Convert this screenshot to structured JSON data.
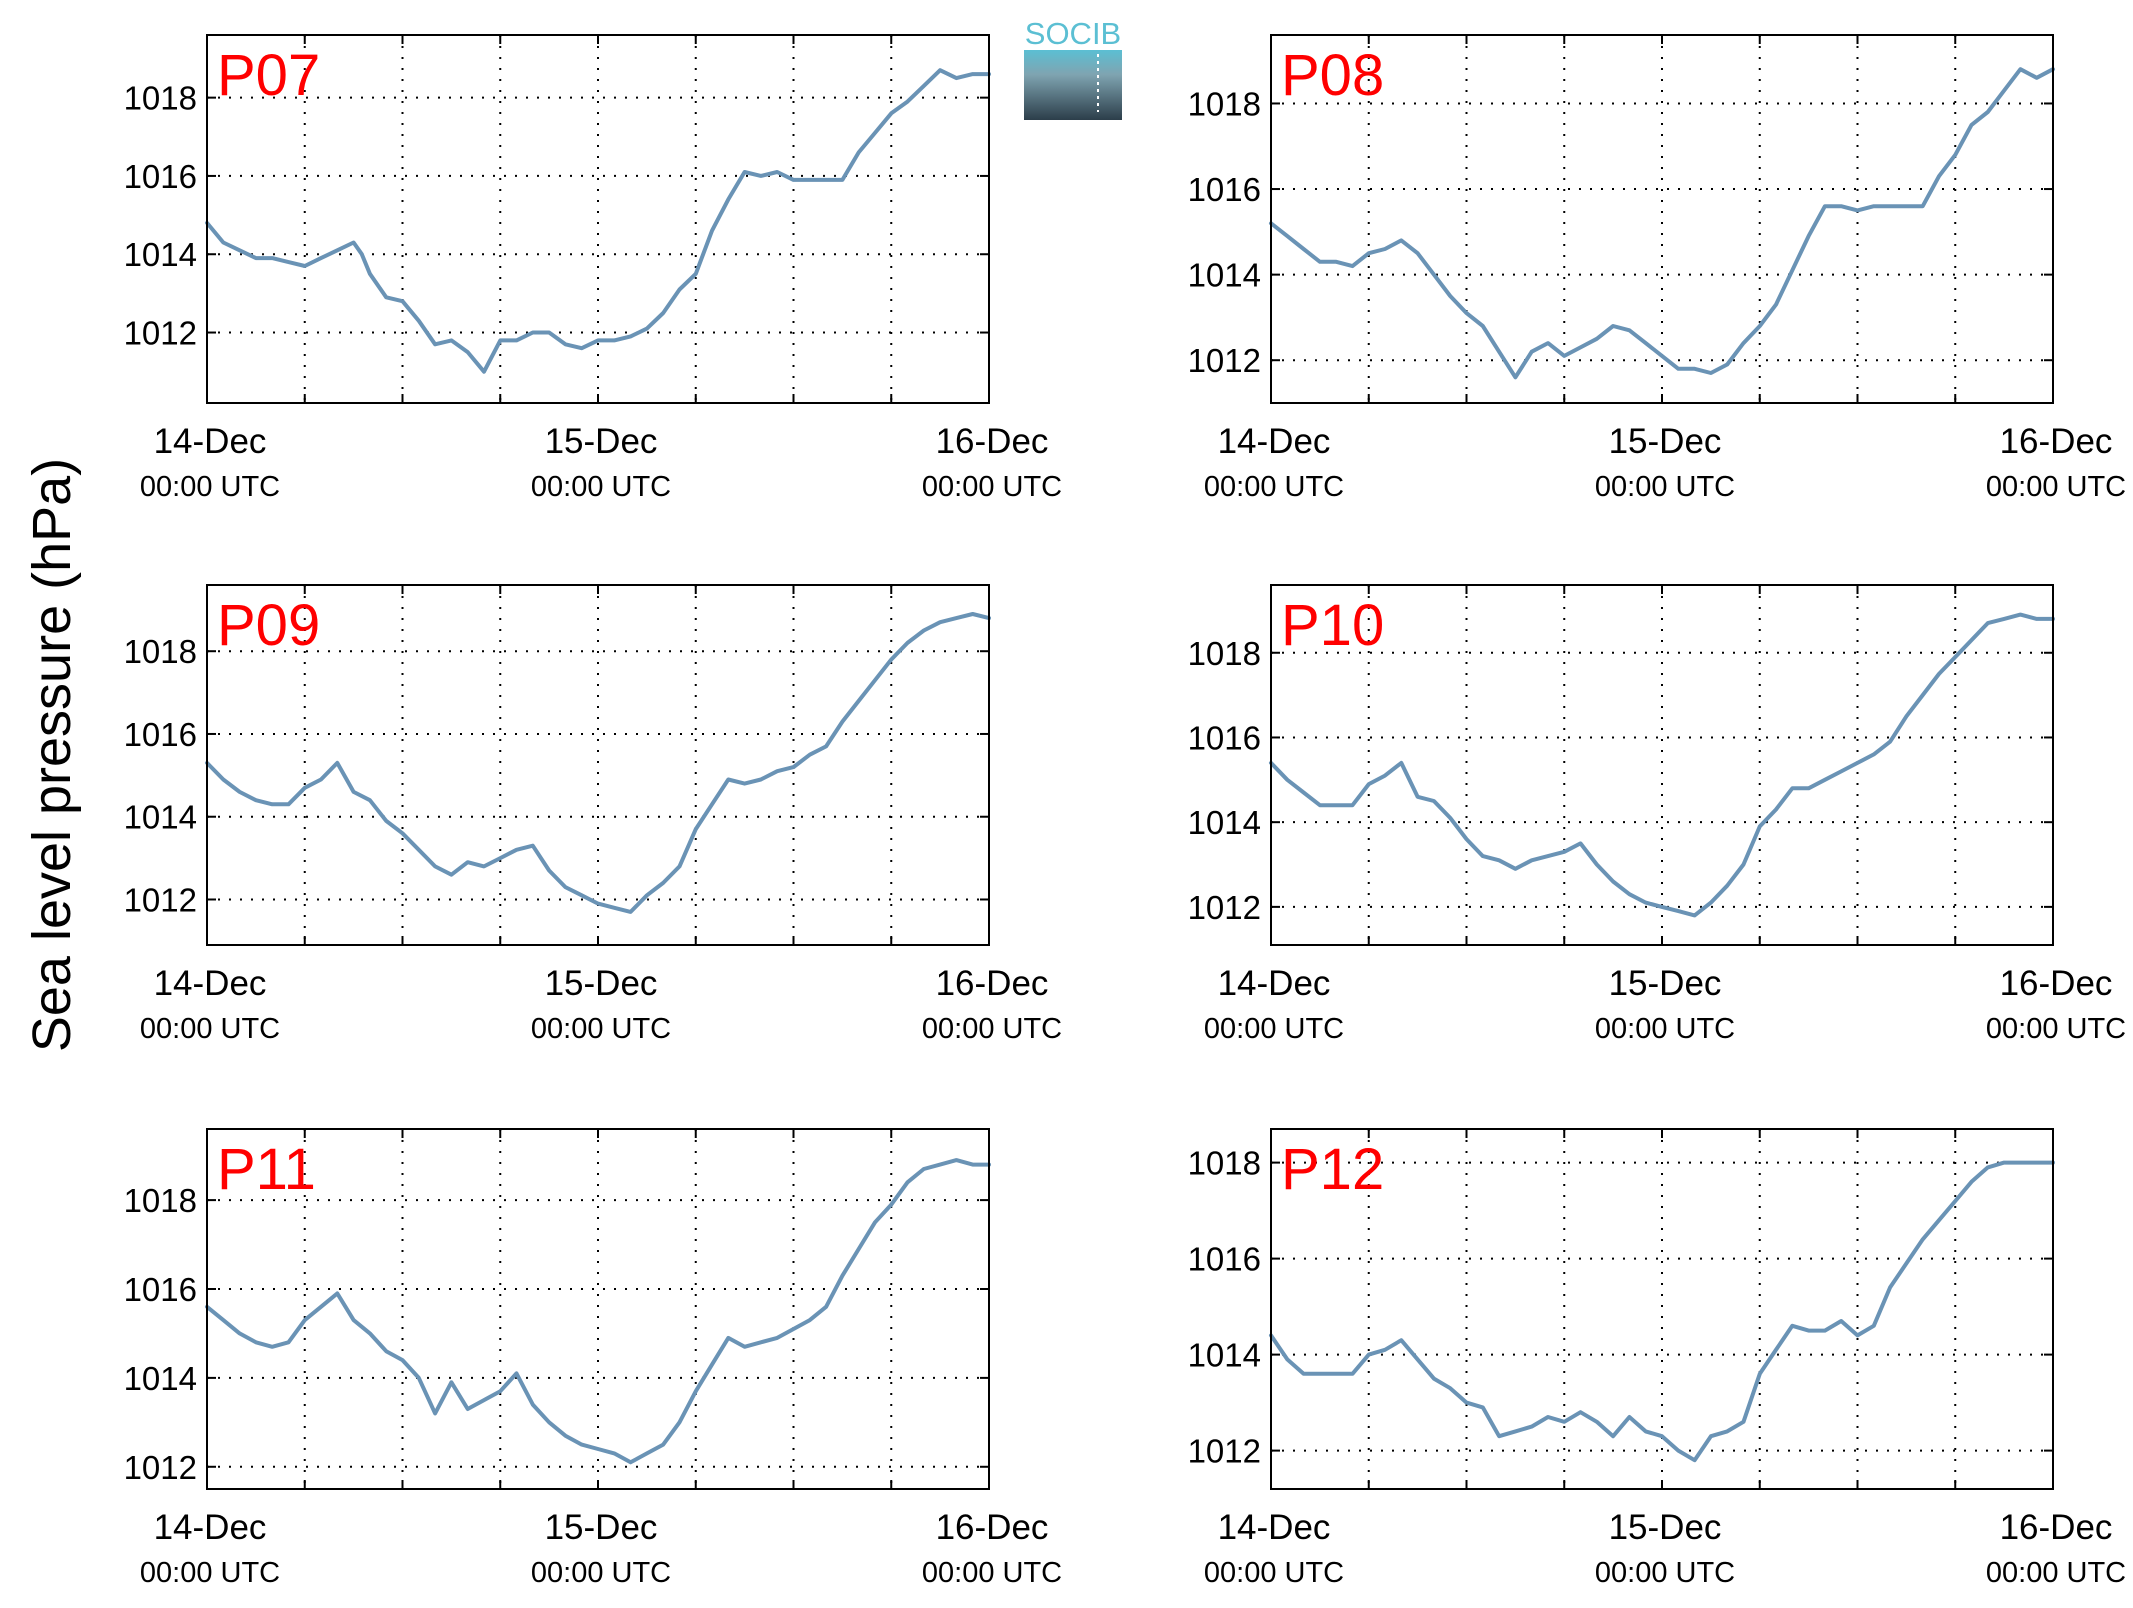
{
  "figure": {
    "ylabel": "Sea level pressure (hPa)",
    "logo_text": "SOCIB",
    "colors": {
      "line": "#6a93b5",
      "panel_label": "#ff0000",
      "axis": "#000000",
      "grid": "#000000",
      "logo_top": "#5bbfd3",
      "logo_bottom": "#2c3e4a"
    }
  },
  "chart_data": [
    {
      "type": "line",
      "title": "P07",
      "ylabel": "Sea level pressure (hPa)",
      "xlim": [
        0,
        48
      ],
      "ylim": [
        1010.2,
        1019.6
      ],
      "yticks": [
        1012,
        1014,
        1016,
        1018
      ],
      "xticks_major": [
        0,
        24,
        48
      ],
      "xtick_labels": [
        [
          "14-Dec",
          "00:00 UTC"
        ],
        [
          "15-Dec",
          "00:00 UTC"
        ],
        [
          "16-Dec",
          "00:00 UTC"
        ]
      ],
      "grid_x": [
        6,
        12,
        18,
        24,
        30,
        36,
        42
      ],
      "grid": true,
      "series": [
        {
          "x": [
            0,
            1,
            2,
            3,
            4,
            5,
            6,
            7,
            8,
            9,
            9.5,
            10,
            11,
            12,
            13,
            14,
            15,
            16,
            17,
            18,
            19,
            20,
            21,
            22,
            23,
            24,
            25,
            26,
            27,
            28,
            29,
            30,
            31,
            32,
            33,
            34,
            35,
            36,
            37,
            38,
            39,
            40,
            41,
            42,
            43,
            44,
            45,
            46,
            47,
            48
          ],
          "y": [
            1014.8,
            1014.3,
            1014.1,
            1013.9,
            1013.9,
            1013.8,
            1013.7,
            1013.9,
            1014.1,
            1014.3,
            1014.0,
            1013.5,
            1012.9,
            1012.8,
            1012.3,
            1011.7,
            1011.8,
            1011.5,
            1011.0,
            1011.8,
            1011.8,
            1012.0,
            1012.0,
            1011.7,
            1011.6,
            1011.8,
            1011.8,
            1011.9,
            1012.1,
            1012.5,
            1013.1,
            1013.5,
            1014.6,
            1015.4,
            1016.1,
            1016.0,
            1016.1,
            1015.9,
            1015.9,
            1015.9,
            1015.9,
            1016.6,
            1017.1,
            1017.6,
            1017.9,
            1018.3,
            1018.7,
            1018.5,
            1018.6,
            1018.6
          ]
        }
      ]
    },
    {
      "type": "line",
      "title": "P08",
      "ylabel": "Sea level pressure (hPa)",
      "xlim": [
        0,
        48
      ],
      "ylim": [
        1011.0,
        1019.6
      ],
      "yticks": [
        1012,
        1014,
        1016,
        1018
      ],
      "xticks_major": [
        0,
        24,
        48
      ],
      "xtick_labels": [
        [
          "14-Dec",
          "00:00 UTC"
        ],
        [
          "15-Dec",
          "00:00 UTC"
        ],
        [
          "16-Dec",
          "00:00 UTC"
        ]
      ],
      "grid_x": [
        6,
        12,
        18,
        24,
        30,
        36,
        42
      ],
      "grid": true,
      "series": [
        {
          "x": [
            0,
            1,
            2,
            3,
            4,
            5,
            6,
            7,
            8,
            9,
            10,
            11,
            12,
            13,
            14,
            15,
            16,
            17,
            18,
            19,
            20,
            21,
            22,
            23,
            24,
            25,
            26,
            27,
            28,
            29,
            30,
            31,
            32,
            33,
            34,
            35,
            36,
            37,
            38,
            39,
            40,
            41,
            42,
            43,
            44,
            45,
            46,
            47,
            48
          ],
          "y": [
            1015.2,
            1014.9,
            1014.6,
            1014.3,
            1014.3,
            1014.2,
            1014.5,
            1014.6,
            1014.8,
            1014.5,
            1014.0,
            1013.5,
            1013.1,
            1012.8,
            1012.2,
            1011.6,
            1012.2,
            1012.4,
            1012.1,
            1012.3,
            1012.5,
            1012.8,
            1012.7,
            1012.4,
            1012.1,
            1011.8,
            1011.8,
            1011.7,
            1011.9,
            1012.4,
            1012.8,
            1013.3,
            1014.1,
            1014.9,
            1015.6,
            1015.6,
            1015.5,
            1015.6,
            1015.6,
            1015.6,
            1015.6,
            1016.3,
            1016.8,
            1017.5,
            1017.8,
            1018.3,
            1018.8,
            1018.6,
            1018.8
          ]
        }
      ]
    },
    {
      "type": "line",
      "title": "P09",
      "ylabel": "Sea level pressure (hPa)",
      "xlim": [
        0,
        48
      ],
      "ylim": [
        1010.9,
        1019.6
      ],
      "yticks": [
        1012,
        1014,
        1016,
        1018
      ],
      "xticks_major": [
        0,
        24,
        48
      ],
      "xtick_labels": [
        [
          "14-Dec",
          "00:00 UTC"
        ],
        [
          "15-Dec",
          "00:00 UTC"
        ],
        [
          "16-Dec",
          "00:00 UTC"
        ]
      ],
      "grid_x": [
        6,
        12,
        18,
        24,
        30,
        36,
        42
      ],
      "grid": true,
      "series": [
        {
          "x": [
            0,
            1,
            2,
            3,
            4,
            5,
            6,
            7,
            8,
            9,
            10,
            11,
            12,
            13,
            14,
            15,
            16,
            17,
            18,
            19,
            20,
            21,
            22,
            23,
            24,
            25,
            26,
            27,
            28,
            29,
            30,
            31,
            32,
            33,
            34,
            35,
            36,
            37,
            38,
            39,
            40,
            41,
            42,
            43,
            44,
            45,
            46,
            47,
            48
          ],
          "y": [
            1015.3,
            1014.9,
            1014.6,
            1014.4,
            1014.3,
            1014.3,
            1014.7,
            1014.9,
            1015.3,
            1014.6,
            1014.4,
            1013.9,
            1013.6,
            1013.2,
            1012.8,
            1012.6,
            1012.9,
            1012.8,
            1013.0,
            1013.2,
            1013.3,
            1012.7,
            1012.3,
            1012.1,
            1011.9,
            1011.8,
            1011.7,
            1012.1,
            1012.4,
            1012.8,
            1013.7,
            1014.3,
            1014.9,
            1014.8,
            1014.9,
            1015.1,
            1015.2,
            1015.5,
            1015.7,
            1016.3,
            1016.8,
            1017.3,
            1017.8,
            1018.2,
            1018.5,
            1018.7,
            1018.8,
            1018.9,
            1018.8
          ]
        }
      ]
    },
    {
      "type": "line",
      "title": "P10",
      "ylabel": "Sea level pressure (hPa)",
      "xlim": [
        0,
        48
      ],
      "ylim": [
        1011.1,
        1019.6
      ],
      "yticks": [
        1012,
        1014,
        1016,
        1018
      ],
      "xticks_major": [
        0,
        24,
        48
      ],
      "xtick_labels": [
        [
          "14-Dec",
          "00:00 UTC"
        ],
        [
          "15-Dec",
          "00:00 UTC"
        ],
        [
          "16-Dec",
          "00:00 UTC"
        ]
      ],
      "grid_x": [
        6,
        12,
        18,
        24,
        30,
        36,
        42
      ],
      "grid": true,
      "series": [
        {
          "x": [
            0,
            1,
            2,
            3,
            4,
            5,
            6,
            7,
            8,
            9,
            10,
            11,
            12,
            13,
            14,
            15,
            16,
            17,
            18,
            19,
            20,
            21,
            22,
            23,
            24,
            25,
            26,
            27,
            28,
            29,
            30,
            31,
            32,
            33,
            34,
            35,
            36,
            37,
            38,
            39,
            40,
            41,
            42,
            43,
            44,
            45,
            46,
            47,
            48
          ],
          "y": [
            1015.4,
            1015.0,
            1014.7,
            1014.4,
            1014.4,
            1014.4,
            1014.9,
            1015.1,
            1015.4,
            1014.6,
            1014.5,
            1014.1,
            1013.6,
            1013.2,
            1013.1,
            1012.9,
            1013.1,
            1013.2,
            1013.3,
            1013.5,
            1013.0,
            1012.6,
            1012.3,
            1012.1,
            1012.0,
            1011.9,
            1011.8,
            1012.1,
            1012.5,
            1013.0,
            1013.9,
            1014.3,
            1014.8,
            1014.8,
            1015.0,
            1015.2,
            1015.4,
            1015.6,
            1015.9,
            1016.5,
            1017.0,
            1017.5,
            1017.9,
            1018.3,
            1018.7,
            1018.8,
            1018.9,
            1018.8,
            1018.8
          ]
        }
      ]
    },
    {
      "type": "line",
      "title": "P11",
      "ylabel": "Sea level pressure (hPa)",
      "xlim": [
        0,
        48
      ],
      "ylim": [
        1011.5,
        1019.6
      ],
      "yticks": [
        1012,
        1014,
        1016,
        1018
      ],
      "xticks_major": [
        0,
        24,
        48
      ],
      "xtick_labels": [
        [
          "14-Dec",
          "00:00 UTC"
        ],
        [
          "15-Dec",
          "00:00 UTC"
        ],
        [
          "16-Dec",
          "00:00 UTC"
        ]
      ],
      "grid_x": [
        6,
        12,
        18,
        24,
        30,
        36,
        42
      ],
      "grid": true,
      "series": [
        {
          "x": [
            0,
            1,
            2,
            3,
            4,
            5,
            6,
            7,
            8,
            9,
            10,
            11,
            12,
            13,
            14,
            15,
            16,
            17,
            18,
            19,
            20,
            21,
            22,
            23,
            24,
            25,
            26,
            27,
            28,
            29,
            30,
            31,
            32,
            33,
            34,
            35,
            36,
            37,
            38,
            39,
            40,
            41,
            42,
            43,
            44,
            45,
            46,
            47,
            48
          ],
          "y": [
            1015.6,
            1015.3,
            1015.0,
            1014.8,
            1014.7,
            1014.8,
            1015.3,
            1015.6,
            1015.9,
            1015.3,
            1015.0,
            1014.6,
            1014.4,
            1014.0,
            1013.2,
            1013.9,
            1013.3,
            1013.5,
            1013.7,
            1014.1,
            1013.4,
            1013.0,
            1012.7,
            1012.5,
            1012.4,
            1012.3,
            1012.1,
            1012.3,
            1012.5,
            1013.0,
            1013.7,
            1014.3,
            1014.9,
            1014.7,
            1014.8,
            1014.9,
            1015.1,
            1015.3,
            1015.6,
            1016.3,
            1016.9,
            1017.5,
            1017.9,
            1018.4,
            1018.7,
            1018.8,
            1018.9,
            1018.8,
            1018.8
          ]
        }
      ]
    },
    {
      "type": "line",
      "title": "P12",
      "ylabel": "Sea level pressure (hPa)",
      "xlim": [
        0,
        48
      ],
      "ylim": [
        1011.2,
        1018.7
      ],
      "yticks": [
        1012,
        1014,
        1016,
        1018
      ],
      "xticks_major": [
        0,
        24,
        48
      ],
      "xtick_labels": [
        [
          "14-Dec",
          "00:00 UTC"
        ],
        [
          "15-Dec",
          "00:00 UTC"
        ],
        [
          "16-Dec",
          "00:00 UTC"
        ]
      ],
      "grid_x": [
        6,
        12,
        18,
        24,
        30,
        36,
        42
      ],
      "grid": true,
      "series": [
        {
          "x": [
            0,
            1,
            2,
            3,
            4,
            5,
            6,
            7,
            8,
            9,
            10,
            11,
            12,
            13,
            14,
            15,
            16,
            17,
            18,
            19,
            20,
            21,
            22,
            23,
            24,
            25,
            26,
            27,
            28,
            29,
            30,
            31,
            32,
            33,
            34,
            35,
            36,
            37,
            38,
            39,
            40,
            41,
            42,
            43,
            44,
            45,
            46,
            47,
            48
          ],
          "y": [
            1014.4,
            1013.9,
            1013.6,
            1013.6,
            1013.6,
            1013.6,
            1014.0,
            1014.1,
            1014.3,
            1013.9,
            1013.5,
            1013.3,
            1013.0,
            1012.9,
            1012.3,
            1012.4,
            1012.5,
            1012.7,
            1012.6,
            1012.8,
            1012.6,
            1012.3,
            1012.7,
            1012.4,
            1012.3,
            1012.0,
            1011.8,
            1012.3,
            1012.4,
            1012.6,
            1013.6,
            1014.1,
            1014.6,
            1014.5,
            1014.5,
            1014.7,
            1014.4,
            1014.6,
            1015.4,
            1015.9,
            1016.4,
            1016.8,
            1017.2,
            1017.6,
            1017.9,
            1018.0,
            1018.0,
            1018.0,
            1018.0
          ]
        }
      ]
    }
  ]
}
